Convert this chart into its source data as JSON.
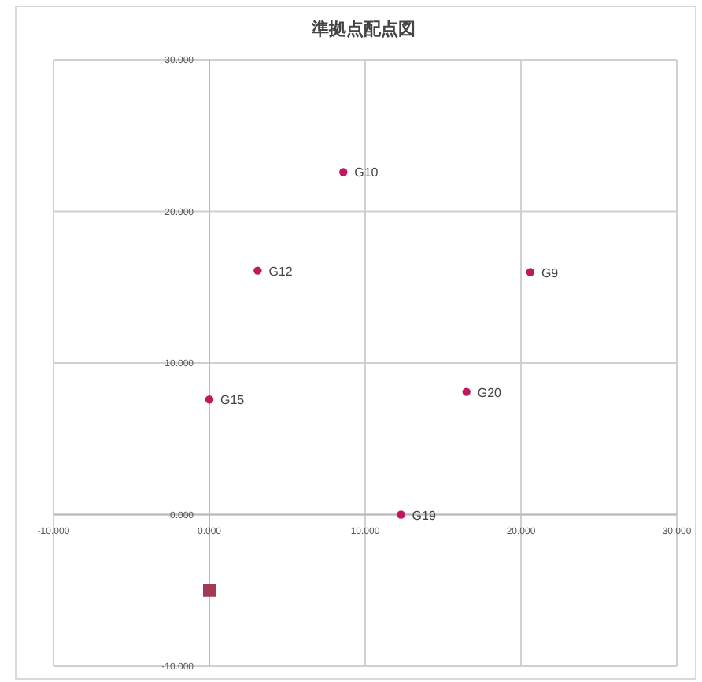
{
  "chart_data": {
    "type": "scatter",
    "title": "準拠点配点図",
    "xlim": [
      -10,
      30
    ],
    "xticks": [
      {
        "value": -10,
        "label": "-10.000"
      },
      {
        "value": 0,
        "label": "0.000"
      },
      {
        "value": 10,
        "label": "10.000"
      },
      {
        "value": 20,
        "label": "20.000"
      },
      {
        "value": 30,
        "label": "30.000"
      }
    ],
    "ylim": [
      -10,
      30
    ],
    "yticks": [
      {
        "value": -10,
        "label": "-10.000"
      },
      {
        "value": 0,
        "label": "0.000"
      },
      {
        "value": 10,
        "label": "10.000"
      },
      {
        "value": 20,
        "label": "20.000"
      },
      {
        "value": 30,
        "label": "30.000"
      }
    ],
    "grid": true,
    "series": [
      {
        "color": "#c2185b",
        "marker": "circle",
        "x": [
          8.6,
          3.1,
          20.6,
          0.0,
          16.5,
          12.3
        ],
        "values": [
          22.6,
          16.1,
          16.0,
          7.6,
          8.1,
          0.0
        ]
      },
      {
        "color": "#a33a55",
        "marker": "square",
        "x": [
          0.0
        ],
        "values": [
          -5.0
        ]
      }
    ],
    "annotations": [
      {
        "text": "G10",
        "x": 8.6,
        "y": 22.6
      },
      {
        "text": "G12",
        "x": 3.1,
        "y": 16.1
      },
      {
        "text": "G9",
        "x": 20.6,
        "y": 16.0
      },
      {
        "text": "G15",
        "x": 0.0,
        "y": 7.6
      },
      {
        "text": "G20",
        "x": 16.5,
        "y": 8.1
      },
      {
        "text": "G19",
        "x": 12.3,
        "y": 0.0
      }
    ]
  }
}
